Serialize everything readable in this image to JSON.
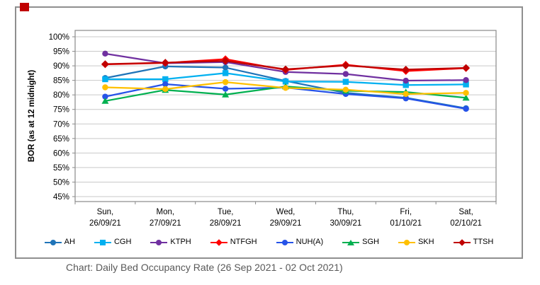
{
  "page": {
    "caption": "Chart: Daily Bed Occupancy Rate (26 Sep 2021 - 02 Oct 2021)"
  },
  "icons": {
    "red_square_color": "#C00000"
  },
  "chart_data": {
    "type": "line",
    "title": "",
    "xlabel": "",
    "ylabel": "BOR (as at 12  midnight)",
    "ylim": [
      45,
      100
    ],
    "ytick_step": 5,
    "ytick_labels": [
      "100%",
      "95%",
      "90%",
      "85%",
      "80%",
      "75%",
      "70%",
      "65%",
      "60%",
      "55%",
      "50%",
      "45%"
    ],
    "grid": "horizontal",
    "legend_position": "bottom",
    "axis_color": "#8a8a8a",
    "gridline_color": "#c9c9c9",
    "categories": [
      [
        "Sun,",
        "26/09/21"
      ],
      [
        "Mon,",
        "27/09/21"
      ],
      [
        "Tue,",
        "28/09/21"
      ],
      [
        "Wed,",
        "29/09/21"
      ],
      [
        "Thu,",
        "30/09/21"
      ],
      [
        "Fri,",
        "01/10/21"
      ],
      [
        "Sat,",
        "02/10/21"
      ]
    ],
    "series": [
      {
        "name": "AH",
        "color": "#1F74B8",
        "marker": "circle",
        "values": [
          85.8,
          89.8,
          89.4,
          84.8,
          80.7,
          79.0,
          75.4
        ]
      },
      {
        "name": "CGH",
        "color": "#00B0F0",
        "marker": "square",
        "values": [
          85.4,
          85.4,
          87.5,
          84.6,
          84.5,
          83.4,
          83.6
        ]
      },
      {
        "name": "KTPH",
        "color": "#7030A0",
        "marker": "circle",
        "values": [
          94.2,
          90.9,
          91.3,
          87.9,
          87.2,
          84.9,
          85.1
        ]
      },
      {
        "name": "NTFGH",
        "color": "#FF0000",
        "marker": "diamond",
        "values": [
          90.5,
          91.0,
          92.3,
          88.6,
          90.4,
          88.2,
          89.2
        ]
      },
      {
        "name": "NUH(A)",
        "color": "#2653E8",
        "marker": "circle",
        "values": [
          79.4,
          83.7,
          82.1,
          82.5,
          80.3,
          78.8,
          75.2
        ]
      },
      {
        "name": "SGH",
        "color": "#00B050",
        "marker": "triangle",
        "values": [
          77.9,
          81.7,
          80.1,
          82.9,
          81.4,
          81.0,
          79.0
        ]
      },
      {
        "name": "SKH",
        "color": "#FFC000",
        "marker": "circle",
        "values": [
          82.6,
          82.0,
          84.4,
          82.4,
          81.8,
          80.3,
          80.7
        ]
      },
      {
        "name": "TTSH",
        "color": "#C00000",
        "marker": "diamond",
        "values": [
          90.6,
          91.1,
          91.7,
          88.8,
          90.1,
          88.7,
          89.3
        ]
      }
    ]
  }
}
